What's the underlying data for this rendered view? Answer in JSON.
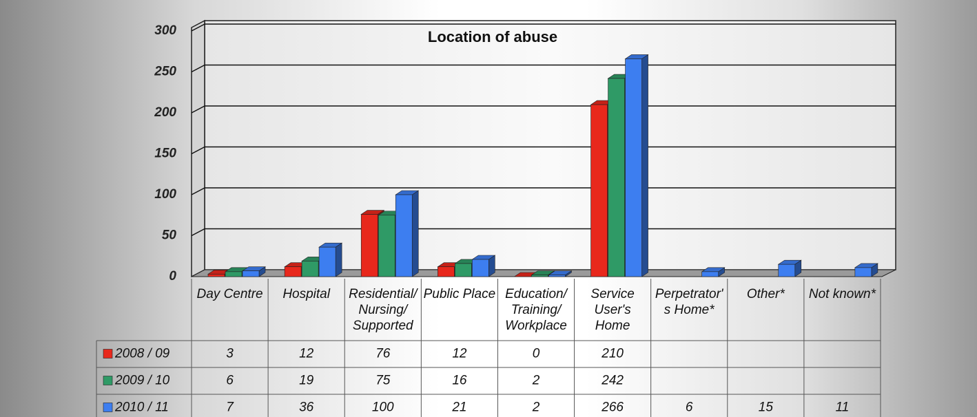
{
  "chart_data": {
    "type": "bar3d",
    "title": "Location of abuse",
    "categories": [
      "Day Centre",
      "Hospital",
      "Residential/ Nursing/ Supported",
      "Public Place",
      "Education/ Training/ Workplace",
      "Service User's Home",
      "Perpetrator's Home*",
      "Other*",
      "Not known*"
    ],
    "series": [
      {
        "name": "2008 / 09",
        "color": "#e8281c",
        "values": [
          3,
          12,
          76,
          12,
          0,
          210,
          null,
          null,
          null
        ]
      },
      {
        "name": "2009 / 10",
        "color": "#2f9a66",
        "values": [
          6,
          19,
          75,
          16,
          2,
          242,
          null,
          null,
          null
        ]
      },
      {
        "name": "2010 / 11",
        "color": "#3d7ef0",
        "values": [
          7,
          36,
          100,
          21,
          2,
          266,
          6,
          15,
          11
        ]
      }
    ],
    "ylim": [
      0,
      300
    ],
    "yticks": [
      0,
      50,
      100,
      150,
      200,
      250,
      300
    ],
    "grid": true,
    "data_table": true
  }
}
